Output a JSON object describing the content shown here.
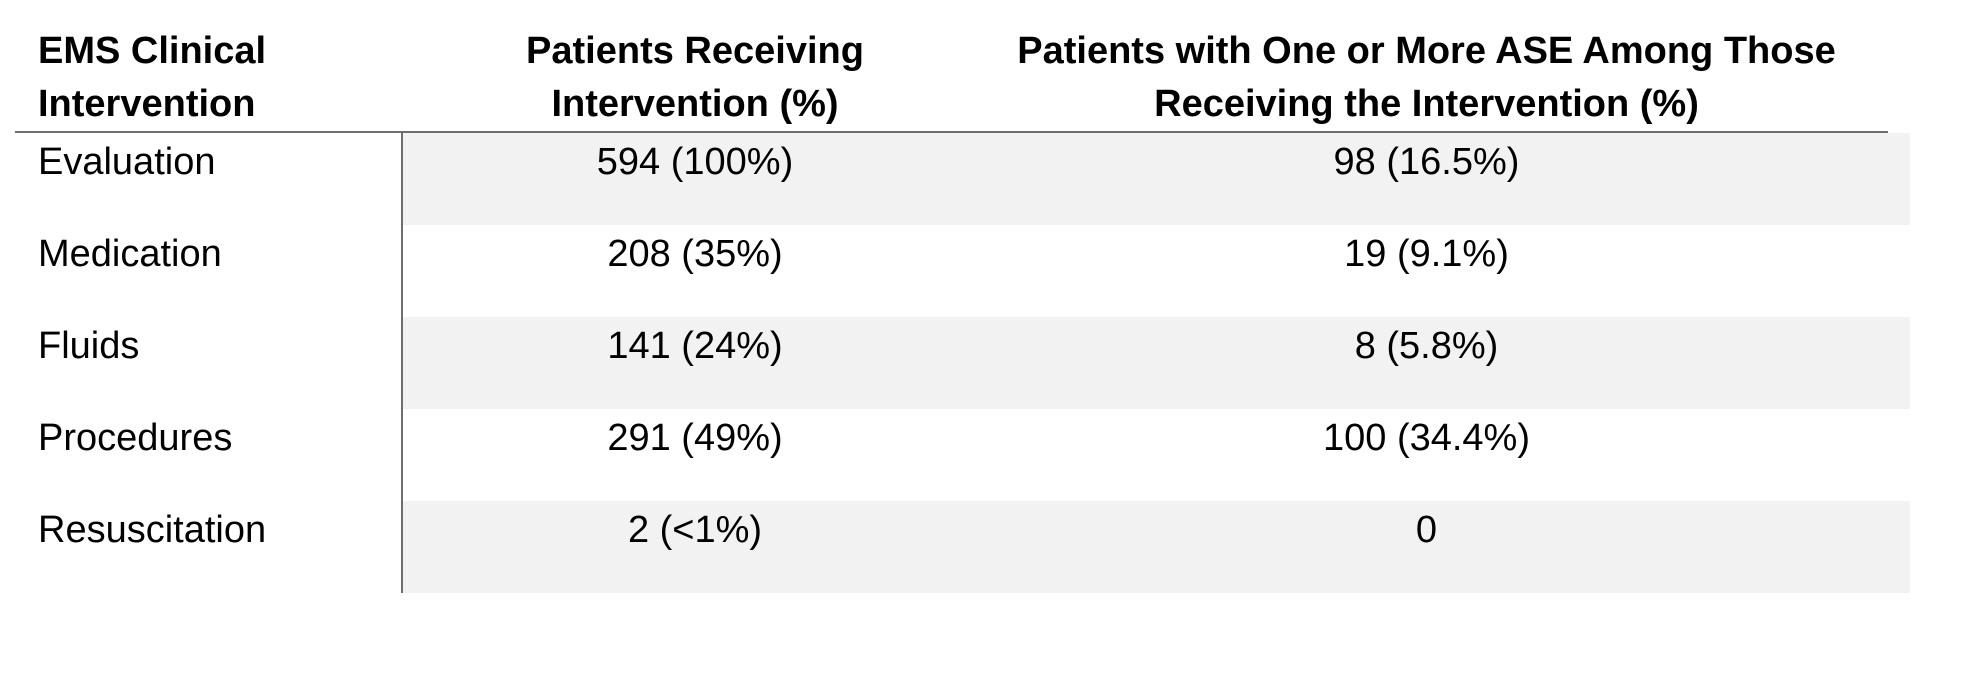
{
  "headers": {
    "col1": [
      "EMS Clinical",
      "Intervention"
    ],
    "col2": [
      "Patients Receiving",
      "Intervention (%)"
    ],
    "col3": [
      "Patients with One or More ASE Among Those",
      "Receiving the Intervention (%)"
    ]
  },
  "rows": [
    {
      "intervention": "Evaluation",
      "receiving": "594 (100%)",
      "ase": "98 (16.5%)"
    },
    {
      "intervention": "Medication",
      "receiving": "208 (35%)",
      "ase": "19 (9.1%)"
    },
    {
      "intervention": "Fluids",
      "receiving": "141 (24%)",
      "ase": "8 (5.8%)"
    },
    {
      "intervention": "Procedures",
      "receiving": "291 (49%)",
      "ase": "100 (34.4%)"
    },
    {
      "intervention": "Resuscitation",
      "receiving": "2 (<1%)",
      "ase": "0"
    }
  ]
}
